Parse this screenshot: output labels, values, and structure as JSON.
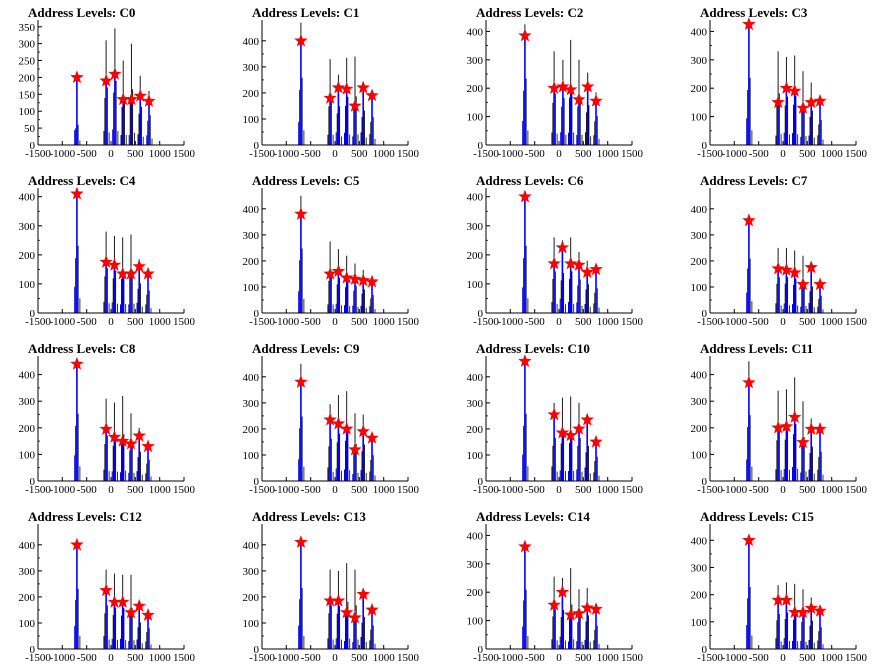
{
  "figure": {
    "x_axis": {
      "range": [
        -1500,
        1500
      ],
      "ticks": [
        -1500,
        -1000,
        -500,
        0,
        500,
        1000,
        1500
      ]
    },
    "histogram_color": "#000000",
    "fit_color": "#0000ff",
    "marker_color": "#ff0000",
    "marker_shape": "star"
  },
  "chart_data": [
    {
      "type": "histogram-with-peak-markers",
      "title": "Address Levels: C0",
      "ylim": [
        0,
        370
      ],
      "yticks": [
        0,
        50,
        100,
        150,
        200,
        250,
        300,
        350
      ],
      "peaks": [
        {
          "x": -700,
          "y": 200,
          "black": 110
        },
        {
          "x": -100,
          "y": 190,
          "black": 310
        },
        {
          "x": 80,
          "y": 210,
          "black": 345
        },
        {
          "x": 250,
          "y": 135,
          "black": 250
        },
        {
          "x": 420,
          "y": 135,
          "black": 300
        },
        {
          "x": 600,
          "y": 145,
          "black": 205
        },
        {
          "x": 780,
          "y": 130,
          "black": 160
        }
      ]
    },
    {
      "type": "histogram-with-peak-markers",
      "title": "Address Levels: C1",
      "ylim": [
        0,
        480
      ],
      "yticks": [
        0,
        100,
        200,
        300,
        400
      ],
      "peaks": [
        {
          "x": -700,
          "y": 400,
          "black": 470
        },
        {
          "x": -100,
          "y": 180,
          "black": 330
        },
        {
          "x": 70,
          "y": 220,
          "black": 270
        },
        {
          "x": 240,
          "y": 215,
          "black": 335
        },
        {
          "x": 410,
          "y": 150,
          "black": 340
        },
        {
          "x": 580,
          "y": 220,
          "black": 240
        },
        {
          "x": 760,
          "y": 190,
          "black": 195
        }
      ]
    },
    {
      "type": "histogram-with-peak-markers",
      "title": "Address Levels: C2",
      "ylim": [
        0,
        440
      ],
      "yticks": [
        0,
        100,
        200,
        300,
        400
      ],
      "peaks": [
        {
          "x": -700,
          "y": 385,
          "black": 425
        },
        {
          "x": -100,
          "y": 200,
          "black": 330
        },
        {
          "x": 80,
          "y": 205,
          "black": 300
        },
        {
          "x": 240,
          "y": 195,
          "black": 370
        },
        {
          "x": 410,
          "y": 160,
          "black": 300
        },
        {
          "x": 590,
          "y": 205,
          "black": 255
        },
        {
          "x": 760,
          "y": 155,
          "black": 185
        }
      ]
    },
    {
      "type": "histogram-with-peak-markers",
      "title": "Address Levels: C3",
      "ylim": [
        0,
        440
      ],
      "yticks": [
        0,
        100,
        200,
        300,
        400
      ],
      "peaks": [
        {
          "x": -700,
          "y": 425,
          "black": 430
        },
        {
          "x": -100,
          "y": 150,
          "black": 330
        },
        {
          "x": 70,
          "y": 200,
          "black": 310
        },
        {
          "x": 240,
          "y": 190,
          "black": 315
        },
        {
          "x": 410,
          "y": 130,
          "black": 260
        },
        {
          "x": 580,
          "y": 150,
          "black": 220
        },
        {
          "x": 760,
          "y": 155,
          "black": 160
        }
      ]
    },
    {
      "type": "histogram-with-peak-markers",
      "title": "Address Levels: C4",
      "ylim": [
        0,
        430
      ],
      "yticks": [
        0,
        100,
        200,
        300,
        400
      ],
      "peaks": [
        {
          "x": -700,
          "y": 410,
          "black": 420
        },
        {
          "x": -100,
          "y": 175,
          "black": 280
        },
        {
          "x": 70,
          "y": 165,
          "black": 265
        },
        {
          "x": 240,
          "y": 135,
          "black": 260
        },
        {
          "x": 410,
          "y": 135,
          "black": 270
        },
        {
          "x": 580,
          "y": 160,
          "black": 185
        },
        {
          "x": 760,
          "y": 135,
          "black": 140
        }
      ]
    },
    {
      "type": "histogram-with-peak-markers",
      "title": "Address Levels: C5",
      "ylim": [
        0,
        480
      ],
      "yticks": [
        0,
        100,
        200,
        300,
        400
      ],
      "peaks": [
        {
          "x": -700,
          "y": 380,
          "black": 450
        },
        {
          "x": -100,
          "y": 150,
          "black": 275
        },
        {
          "x": 70,
          "y": 160,
          "black": 245
        },
        {
          "x": 240,
          "y": 135,
          "black": 220
        },
        {
          "x": 410,
          "y": 130,
          "black": 190
        },
        {
          "x": 580,
          "y": 125,
          "black": 165
        },
        {
          "x": 760,
          "y": 120,
          "black": 125
        }
      ]
    },
    {
      "type": "histogram-with-peak-markers",
      "title": "Address Levels: C6",
      "ylim": [
        0,
        430
      ],
      "yticks": [
        0,
        100,
        200,
        300,
        400
      ],
      "peaks": [
        {
          "x": -700,
          "y": 400,
          "black": 420
        },
        {
          "x": -100,
          "y": 170,
          "black": 260
        },
        {
          "x": 70,
          "y": 225,
          "black": 250
        },
        {
          "x": 240,
          "y": 170,
          "black": 260
        },
        {
          "x": 410,
          "y": 165,
          "black": 210
        },
        {
          "x": 580,
          "y": 140,
          "black": 180
        },
        {
          "x": 760,
          "y": 150,
          "black": 155
        }
      ]
    },
    {
      "type": "histogram-with-peak-markers",
      "title": "Address Levels: C7",
      "ylim": [
        0,
        480
      ],
      "yticks": [
        0,
        100,
        200,
        300,
        400
      ],
      "peaks": [
        {
          "x": -700,
          "y": 355,
          "black": 380
        },
        {
          "x": -100,
          "y": 170,
          "black": 250
        },
        {
          "x": 70,
          "y": 165,
          "black": 250
        },
        {
          "x": 240,
          "y": 155,
          "black": 240
        },
        {
          "x": 410,
          "y": 110,
          "black": 220
        },
        {
          "x": 580,
          "y": 175,
          "black": 185
        },
        {
          "x": 760,
          "y": 110,
          "black": 120
        }
      ]
    },
    {
      "type": "histogram-with-peak-markers",
      "title": "Address Levels: C8",
      "ylim": [
        0,
        470
      ],
      "yticks": [
        0,
        100,
        200,
        300,
        400
      ],
      "peaks": [
        {
          "x": -700,
          "y": 440,
          "black": 460
        },
        {
          "x": -100,
          "y": 195,
          "black": 310
        },
        {
          "x": 70,
          "y": 165,
          "black": 295
        },
        {
          "x": 240,
          "y": 150,
          "black": 320
        },
        {
          "x": 410,
          "y": 140,
          "black": 255
        },
        {
          "x": 580,
          "y": 170,
          "black": 200
        },
        {
          "x": 760,
          "y": 130,
          "black": 145
        }
      ]
    },
    {
      "type": "histogram-with-peak-markers",
      "title": "Address Levels: C9",
      "ylim": [
        0,
        480
      ],
      "yticks": [
        0,
        100,
        200,
        300,
        400
      ],
      "peaks": [
        {
          "x": -700,
          "y": 380,
          "black": 450
        },
        {
          "x": -100,
          "y": 235,
          "black": 295
        },
        {
          "x": 70,
          "y": 220,
          "black": 330
        },
        {
          "x": 240,
          "y": 200,
          "black": 345
        },
        {
          "x": 410,
          "y": 120,
          "black": 260
        },
        {
          "x": 580,
          "y": 190,
          "black": 255
        },
        {
          "x": 760,
          "y": 165,
          "black": 180
        }
      ]
    },
    {
      "type": "histogram-with-peak-markers",
      "title": "Address Levels: C10",
      "ylim": [
        0,
        480
      ],
      "yticks": [
        0,
        100,
        200,
        300,
        400
      ],
      "peaks": [
        {
          "x": -700,
          "y": 460,
          "black": 470
        },
        {
          "x": -100,
          "y": 255,
          "black": 300
        },
        {
          "x": 70,
          "y": 185,
          "black": 320
        },
        {
          "x": 240,
          "y": 175,
          "black": 325
        },
        {
          "x": 410,
          "y": 200,
          "black": 300
        },
        {
          "x": 580,
          "y": 235,
          "black": 245
        },
        {
          "x": 760,
          "y": 150,
          "black": 170
        }
      ]
    },
    {
      "type": "histogram-with-peak-markers",
      "title": "Address Levels: C11",
      "ylim": [
        0,
        470
      ],
      "yticks": [
        0,
        100,
        200,
        300,
        400
      ],
      "peaks": [
        {
          "x": -700,
          "y": 370,
          "black": 450
        },
        {
          "x": -100,
          "y": 200,
          "black": 340
        },
        {
          "x": 70,
          "y": 205,
          "black": 345
        },
        {
          "x": 240,
          "y": 240,
          "black": 390
        },
        {
          "x": 410,
          "y": 145,
          "black": 300
        },
        {
          "x": 580,
          "y": 195,
          "black": 235
        },
        {
          "x": 760,
          "y": 195,
          "black": 200
        }
      ]
    },
    {
      "type": "histogram-with-peak-markers",
      "title": "Address Levels: C12",
      "ylim": [
        0,
        480
      ],
      "yticks": [
        0,
        100,
        200,
        300,
        400
      ],
      "peaks": [
        {
          "x": -700,
          "y": 400,
          "black": 420
        },
        {
          "x": -100,
          "y": 225,
          "black": 305
        },
        {
          "x": 70,
          "y": 180,
          "black": 290
        },
        {
          "x": 240,
          "y": 180,
          "black": 285
        },
        {
          "x": 410,
          "y": 140,
          "black": 285
        },
        {
          "x": 580,
          "y": 165,
          "black": 185
        },
        {
          "x": 760,
          "y": 130,
          "black": 145
        }
      ]
    },
    {
      "type": "histogram-with-peak-markers",
      "title": "Address Levels: C13",
      "ylim": [
        0,
        480
      ],
      "yticks": [
        0,
        100,
        200,
        300,
        400
      ],
      "peaks": [
        {
          "x": -700,
          "y": 410,
          "black": 425
        },
        {
          "x": -100,
          "y": 185,
          "black": 305
        },
        {
          "x": 70,
          "y": 185,
          "black": 300
        },
        {
          "x": 240,
          "y": 140,
          "black": 330
        },
        {
          "x": 410,
          "y": 120,
          "black": 305
        },
        {
          "x": 580,
          "y": 210,
          "black": 225
        },
        {
          "x": 760,
          "y": 150,
          "black": 165
        }
      ]
    },
    {
      "type": "histogram-with-peak-markers",
      "title": "Address Levels: C14",
      "ylim": [
        0,
        440
      ],
      "yticks": [
        0,
        100,
        200,
        300,
        400
      ],
      "peaks": [
        {
          "x": -700,
          "y": 360,
          "black": 380
        },
        {
          "x": -100,
          "y": 155,
          "black": 255
        },
        {
          "x": 70,
          "y": 200,
          "black": 250
        },
        {
          "x": 240,
          "y": 120,
          "black": 285
        },
        {
          "x": 410,
          "y": 125,
          "black": 210
        },
        {
          "x": 580,
          "y": 145,
          "black": 215
        },
        {
          "x": 760,
          "y": 140,
          "black": 150
        }
      ]
    },
    {
      "type": "histogram-with-peak-markers",
      "title": "Address Levels: C15",
      "ylim": [
        0,
        460
      ],
      "yticks": [
        0,
        100,
        200,
        300,
        400
      ],
      "peaks": [
        {
          "x": -700,
          "y": 400,
          "black": 415
        },
        {
          "x": -100,
          "y": 180,
          "black": 235
        },
        {
          "x": 70,
          "y": 180,
          "black": 245
        },
        {
          "x": 240,
          "y": 135,
          "black": 240
        },
        {
          "x": 410,
          "y": 135,
          "black": 220
        },
        {
          "x": 580,
          "y": 150,
          "black": 190
        },
        {
          "x": 760,
          "y": 140,
          "black": 145
        }
      ]
    }
  ]
}
